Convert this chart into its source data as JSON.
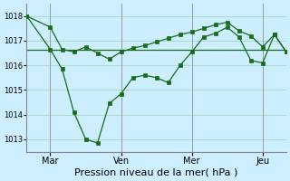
{
  "bg_color": "#cceeff",
  "grid_color": "#aaddcc",
  "line_color": "#1a6b1a",
  "marker_color": "#1a6b1a",
  "xlabel": "Pression niveau de la mer( hPa )",
  "ylim": [
    1012.5,
    1018.5
  ],
  "yticks": [
    1013,
    1014,
    1015,
    1016,
    1017,
    1018
  ],
  "xtick_labels": [
    "Mar",
    "Ven",
    "Mer",
    "Jeu"
  ],
  "xtick_positions": [
    12,
    48,
    84,
    120
  ],
  "xlim": [
    0,
    132
  ],
  "series1_x": [
    0,
    12,
    18,
    24,
    30,
    36,
    42,
    48,
    54,
    60,
    66,
    72,
    78,
    84,
    90,
    96,
    102,
    108,
    114,
    120,
    126,
    132
  ],
  "series1_y": [
    1018.0,
    1017.55,
    1016.65,
    1016.55,
    1016.75,
    1016.5,
    1016.25,
    1016.55,
    1016.7,
    1016.8,
    1016.95,
    1017.1,
    1017.25,
    1017.35,
    1017.5,
    1017.65,
    1017.75,
    1017.4,
    1017.2,
    1016.75,
    1017.25,
    1016.55
  ],
  "series2_x": [
    0,
    12,
    18,
    24,
    30,
    36,
    42,
    48,
    54,
    60,
    66,
    72,
    78,
    84,
    90,
    96,
    102,
    108,
    114,
    120,
    126,
    132
  ],
  "series2_y": [
    1018.0,
    1016.65,
    1015.85,
    1014.1,
    1013.0,
    1012.85,
    1014.45,
    1014.85,
    1015.5,
    1015.6,
    1015.5,
    1015.3,
    1016.0,
    1016.55,
    1017.15,
    1017.3,
    1017.55,
    1017.15,
    1016.2,
    1016.1,
    1017.25,
    1016.55
  ],
  "series3_y": 1016.65,
  "xlabel_fontsize": 8,
  "ytick_fontsize": 6,
  "xtick_fontsize": 7
}
